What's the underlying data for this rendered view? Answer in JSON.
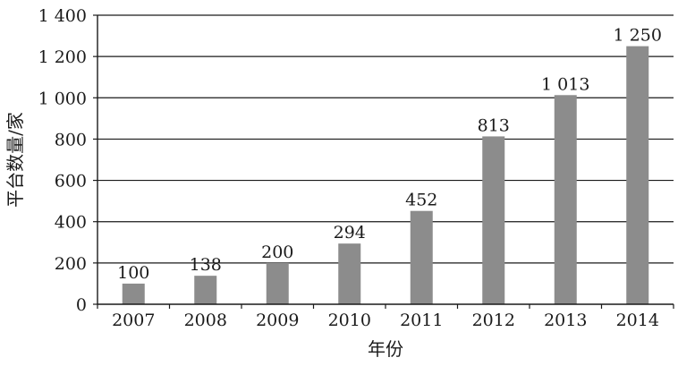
{
  "chart_data": {
    "type": "bar",
    "title": "",
    "xlabel": "年份",
    "ylabel": "平台数量/家",
    "categories": [
      "2007",
      "2008",
      "2009",
      "2010",
      "2011",
      "2012",
      "2013",
      "2014"
    ],
    "values": [
      100,
      138,
      200,
      294,
      452,
      813,
      1013,
      1250
    ],
    "value_labels": [
      "100",
      "138",
      "200",
      "294",
      "452",
      "813",
      "1 013",
      "1 250"
    ],
    "ylim": [
      0,
      1400
    ],
    "yticks": [
      0,
      200,
      400,
      600,
      800,
      1000,
      1200,
      1400
    ],
    "ytick_labels": [
      "0",
      "200",
      "400",
      "600",
      "800",
      "1 000",
      "1 200",
      "1 400"
    ],
    "grid": true,
    "legend": "none",
    "colors": {
      "bar": "#8c8c8c",
      "grid": "#1a1a1a",
      "axis": "#1a1a1a"
    }
  }
}
